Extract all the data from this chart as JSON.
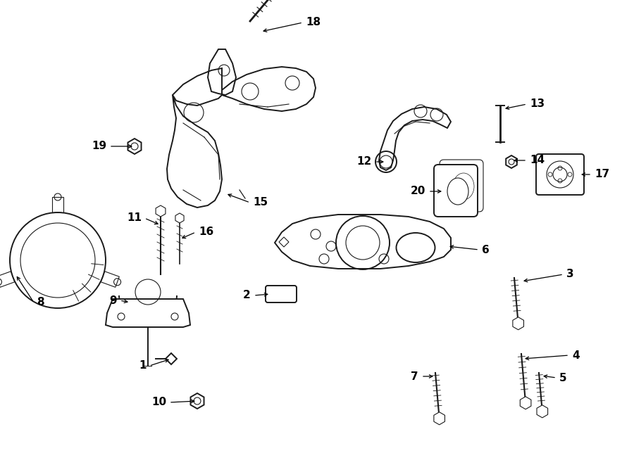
{
  "background_color": "#ffffff",
  "line_color": "#1a1a1a",
  "lw_main": 1.4,
  "lw_thin": 0.8,
  "lw_thick": 2.0,
  "figw": 9.0,
  "figh": 6.61,
  "dpi": 100
}
